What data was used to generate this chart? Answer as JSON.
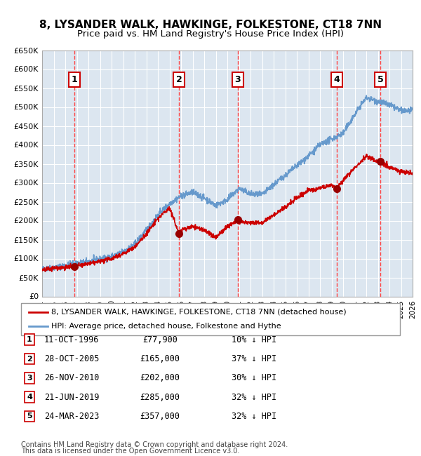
{
  "title": "8, LYSANDER WALK, HAWKINGE, FOLKESTONE, CT18 7NN",
  "subtitle": "Price paid vs. HM Land Registry's House Price Index (HPI)",
  "background_color": "#dce6f0",
  "plot_bg_color": "#dce6f0",
  "hatch_color": "#b8c8d8",
  "grid_color": "#ffffff",
  "red_line_color": "#cc0000",
  "blue_line_color": "#6699cc",
  "sale_marker_color": "#990000",
  "dashed_line_color": "#ff4444",
  "ylabel_prefix": "£",
  "ylim": [
    0,
    650000
  ],
  "yticks": [
    0,
    50000,
    100000,
    150000,
    200000,
    250000,
    300000,
    350000,
    400000,
    450000,
    500000,
    550000,
    600000,
    650000
  ],
  "ytick_labels": [
    "£0",
    "£50K",
    "£100K",
    "£150K",
    "£200K",
    "£250K",
    "£300K",
    "£350K",
    "£400K",
    "£450K",
    "£500K",
    "£550K",
    "£600K",
    "£650K"
  ],
  "xlim_start": 1994.0,
  "xlim_end": 2026.0,
  "xticks": [
    1994,
    1995,
    1996,
    1997,
    1998,
    1999,
    2000,
    2001,
    2002,
    2003,
    2004,
    2005,
    2006,
    2007,
    2008,
    2009,
    2010,
    2011,
    2012,
    2013,
    2014,
    2015,
    2016,
    2017,
    2018,
    2019,
    2020,
    2021,
    2022,
    2023,
    2024,
    2025,
    2026
  ],
  "sale_dates_decimal": [
    1996.78,
    2005.83,
    2010.9,
    2019.47,
    2023.23
  ],
  "sale_prices": [
    77900,
    165000,
    202000,
    285000,
    357000
  ],
  "sale_labels": [
    "1",
    "2",
    "3",
    "4",
    "5"
  ],
  "sale_date_strings": [
    "11-OCT-1996",
    "28-OCT-2005",
    "26-NOV-2010",
    "21-JUN-2019",
    "24-MAR-2023"
  ],
  "sale_price_strings": [
    "£77,900",
    "£165,000",
    "£202,000",
    "£285,000",
    "£357,000"
  ],
  "sale_discount_strings": [
    "10% ↓ HPI",
    "37% ↓ HPI",
    "30% ↓ HPI",
    "32% ↓ HPI",
    "32% ↓ HPI"
  ],
  "legend_red_label": "8, LYSANDER WALK, HAWKINGE, FOLKESTONE, CT18 7NN (detached house)",
  "legend_blue_label": "HPI: Average price, detached house, Folkestone and Hythe",
  "footnote1": "Contains HM Land Registry data © Crown copyright and database right 2024.",
  "footnote2": "This data is licensed under the Open Government Licence v3.0."
}
